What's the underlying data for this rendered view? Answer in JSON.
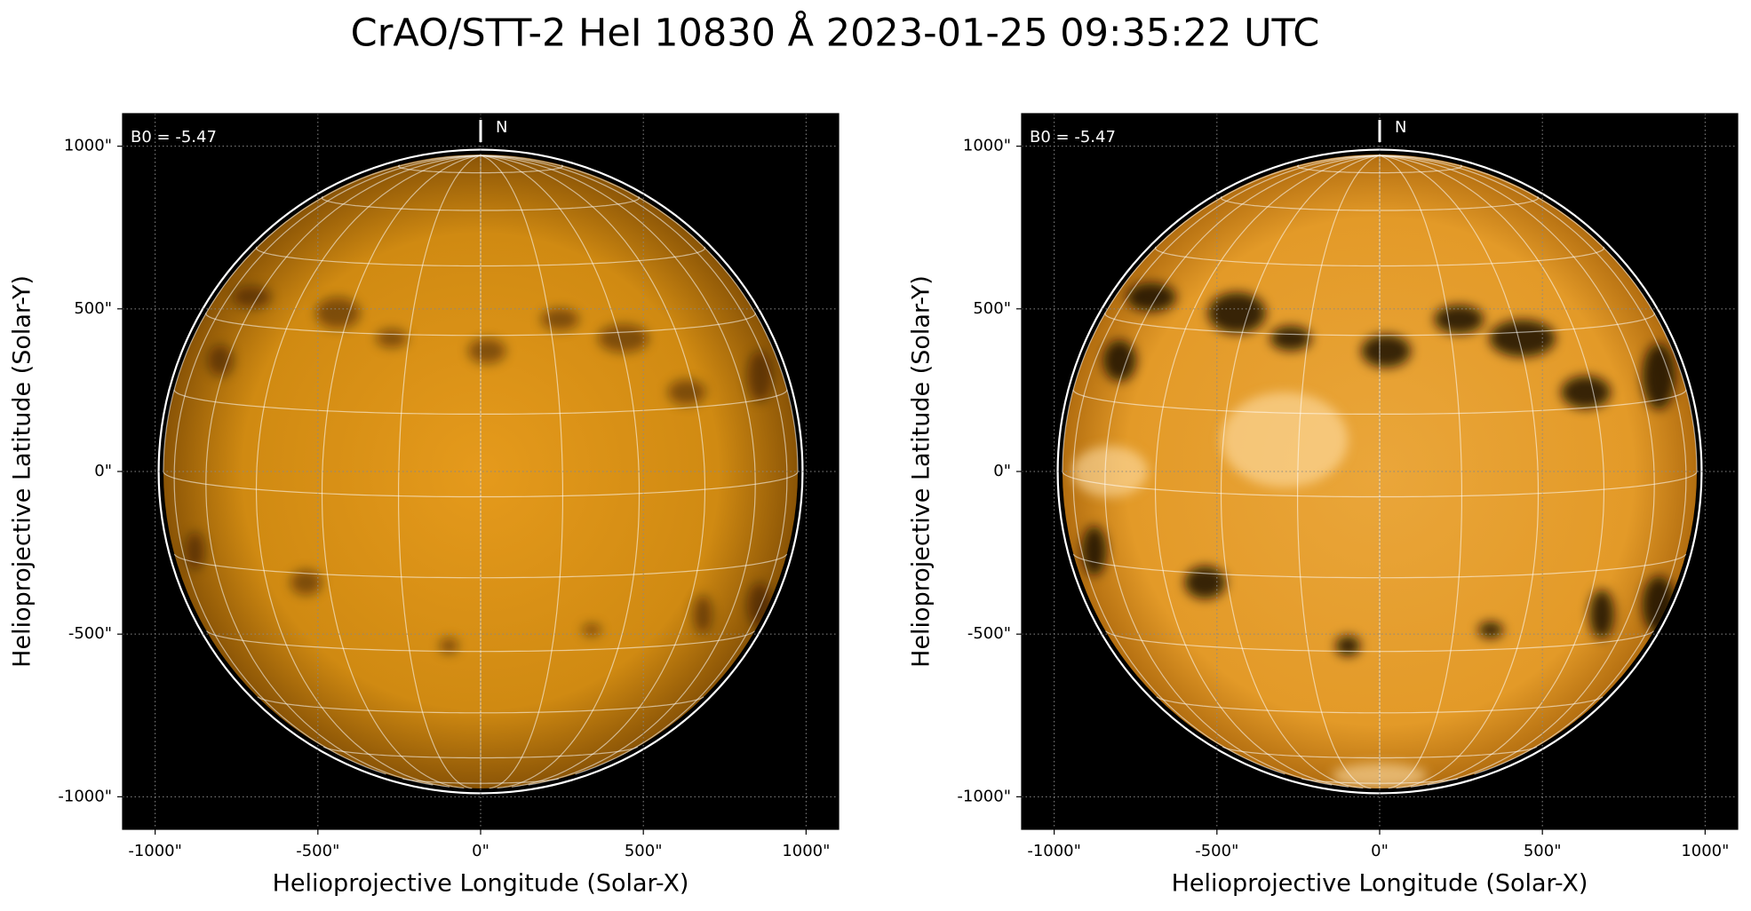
{
  "chart_data": [
    {
      "type": "image",
      "title": "CrAO/STT-2 HeI 10830 Å 2023-01-25 09:35:22 UTC",
      "x_label": "Helioprojective Longitude (Solar-X)",
      "y_label": "Helioprojective Latitude (Solar-Y)",
      "annotations": [
        "B0 = -5.47",
        "N"
      ],
      "xlim": [
        -1100,
        1100
      ],
      "ylim": [
        -1100,
        1100
      ],
      "xticks": [
        {
          "value": -1000,
          "label": "-1000\""
        },
        {
          "value": -500,
          "label": "-500\""
        },
        {
          "value": 0,
          "label": "0\""
        },
        {
          "value": 500,
          "label": "500\""
        },
        {
          "value": 1000,
          "label": "1000\""
        }
      ],
      "yticks": [
        {
          "value": -1000,
          "label": "-1000\""
        },
        {
          "value": -500,
          "label": "-500\""
        },
        {
          "value": 0,
          "label": "0\""
        },
        {
          "value": 500,
          "label": "500\""
        },
        {
          "value": 1000,
          "label": "1000\""
        }
      ],
      "grid": true
    },
    {
      "type": "image",
      "x_label": "Helioprojective Longitude (Solar-X)",
      "y_label": "Helioprojective Latitude (Solar-Y)",
      "annotations": [
        "B0 = -5.47",
        "N"
      ],
      "xlim": [
        -1100,
        1100
      ],
      "ylim": [
        -1100,
        1100
      ],
      "xticks": [
        {
          "value": -1000,
          "label": "-1000\""
        },
        {
          "value": -500,
          "label": "-500\""
        },
        {
          "value": 0,
          "label": "0\""
        },
        {
          "value": 500,
          "label": "500\""
        },
        {
          "value": 1000,
          "label": "1000\""
        }
      ],
      "yticks": [
        {
          "value": -1000,
          "label": "-1000\""
        },
        {
          "value": -500,
          "label": "-500\""
        },
        {
          "value": 0,
          "label": "0\""
        },
        {
          "value": 500,
          "label": "500\""
        },
        {
          "value": 1000,
          "label": "1000\""
        }
      ],
      "grid": true
    }
  ]
}
